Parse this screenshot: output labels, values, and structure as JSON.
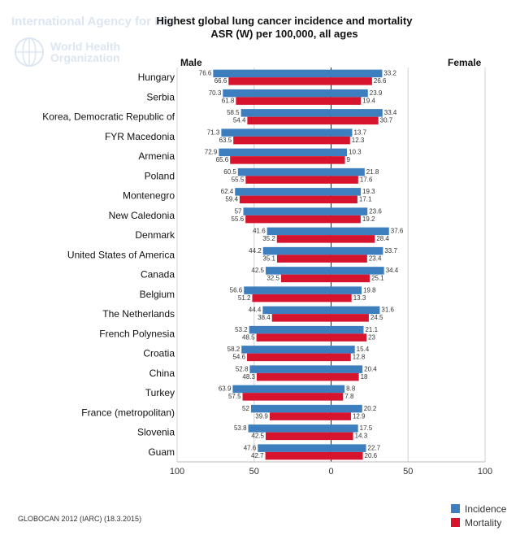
{
  "watermark": {
    "agency": "International Agency for Res",
    "org_line1": "World Health",
    "org_line2": "Organization"
  },
  "footer": "GLOBOCAN 2012 (IARC) (18.3.2015)",
  "colors": {
    "incidence": "#3d7ebf",
    "mortality": "#d7142d"
  },
  "chart_data": {
    "type": "bar",
    "orientation": "horizontal-butterfly",
    "title": "Highest global lung cancer incidence and mortality",
    "subtitle": "ASR (W) per 100,000, all ages",
    "left_label": "Male",
    "right_label": "Female",
    "xlim": [
      -100,
      100
    ],
    "x_ticks": [
      "100",
      "50",
      "0",
      "50",
      "100"
    ],
    "legend": [
      "Incidence",
      "Mortality"
    ],
    "legend_position": "bottom-right",
    "categories": [
      "Hungary",
      "Serbia",
      "Korea, Democratic Republic of",
      "FYR Macedonia",
      "Armenia",
      "Poland",
      "Montenegro",
      "New Caledonia",
      "Denmark",
      "United States of America",
      "Canada",
      "Belgium",
      "The Netherlands",
      "French Polynesia",
      "Croatia",
      "China",
      "Turkey",
      "France (metropolitan)",
      "Slovenia",
      "Guam"
    ],
    "male_incidence": [
      "76.6",
      "70.3",
      "58.5",
      "71.3",
      "72.9",
      "60.5",
      "62.4",
      "57",
      "41.6",
      "44.2",
      "42.5",
      "56.6",
      "44.4",
      "53.2",
      "58.2",
      "52.8",
      "63.9",
      "52",
      "53.8",
      "47.6"
    ],
    "male_mortality": [
      "66.6",
      "61.8",
      "54.4",
      "63.5",
      "65.6",
      "55.5",
      "59.4",
      "55.6",
      "35.2",
      "35.1",
      "32.5",
      "51.2",
      "38.4",
      "48.5",
      "54.6",
      "48.3",
      "57.5",
      "39.9",
      "42.5",
      "42.7"
    ],
    "female_incidence": [
      "33.2",
      "23.9",
      "33.4",
      "13.7",
      "10.3",
      "21.8",
      "19.3",
      "23.6",
      "37.6",
      "33.7",
      "34.4",
      "19.8",
      "31.6",
      "21.1",
      "15.4",
      "20.4",
      "8.8",
      "20.2",
      "17.5",
      "22.7"
    ],
    "female_mortality": [
      "26.6",
      "19.4",
      "30.7",
      "12.3",
      "9",
      "17.6",
      "17.1",
      "19.2",
      "28.4",
      "23.4",
      "25.1",
      "13.3",
      "24.5",
      "23",
      "12.8",
      "18",
      "7.8",
      "12.9",
      "14.3",
      "20.6"
    ]
  }
}
